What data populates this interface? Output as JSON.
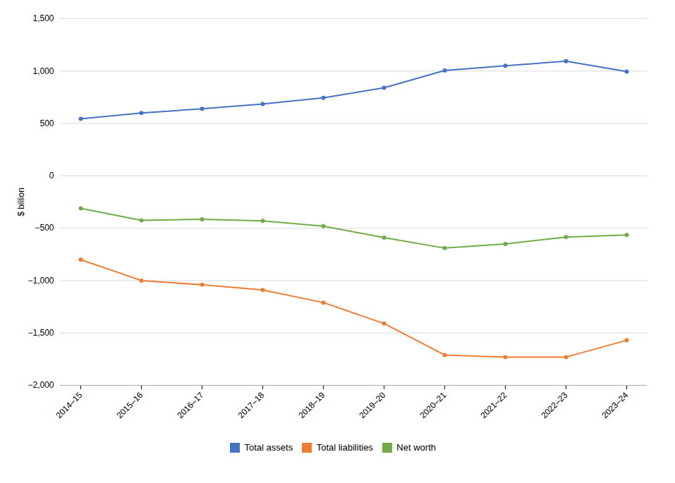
{
  "chart_data": {
    "type": "line",
    "y_label": "$ billion",
    "categories": [
      "2014–15",
      "2015–16",
      "2016–17",
      "2017–18",
      "2018–19",
      "2019–20",
      "2020–21",
      "2021–22",
      "2022–23",
      "2023–24"
    ],
    "series": [
      {
        "name": "Total assets",
        "color": "#4472C4",
        "marker": "circle",
        "values": [
          545,
          600,
          640,
          685,
          745,
          840,
          1005,
          1050,
          1095,
          995
        ]
      },
      {
        "name": "Total liabilities",
        "color": "#ED7D31",
        "marker": "circle",
        "values": [
          -800,
          -1000,
          -1040,
          -1090,
          -1210,
          -1410,
          -1710,
          -1730,
          -1730,
          -1570
        ]
      },
      {
        "name": "Net worth",
        "color": "#70AD47",
        "marker": "circle",
        "values": [
          -310,
          -425,
          -415,
          -430,
          -480,
          -590,
          -690,
          -650,
          -585,
          -565
        ]
      }
    ],
    "ylim": [
      -2000,
      1500
    ],
    "yticks": [
      {
        "value": -2000,
        "label": "−2,000"
      },
      {
        "value": -1500,
        "label": "−1,500"
      },
      {
        "value": -1000,
        "label": "−1,000"
      },
      {
        "value": -500,
        "label": "−500"
      },
      0,
      500,
      {
        "value": 1000,
        "label": "1,000"
      },
      {
        "value": 1500,
        "label": "1,500"
      }
    ],
    "grid": true,
    "legend": "bottom"
  }
}
